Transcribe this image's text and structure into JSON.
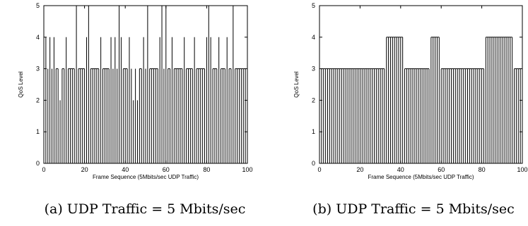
{
  "chart_data": [
    {
      "type": "bar",
      "xlabel": "Frame Sequence (5Mbits/sec UDP Traffic)",
      "ylabel": "QoS Level",
      "xlim": [
        0,
        100
      ],
      "ylim": [
        0,
        5
      ],
      "xticks": [
        "0",
        "20",
        "40",
        "60",
        "80",
        "100"
      ],
      "yticks": [
        "0",
        "1",
        "2",
        "3",
        "4",
        "5"
      ],
      "grid": false,
      "x": [
        1,
        2,
        3,
        4,
        5,
        6,
        7,
        8,
        9,
        10,
        11,
        12,
        13,
        14,
        15,
        16,
        17,
        18,
        19,
        20,
        21,
        22,
        23,
        24,
        25,
        26,
        27,
        28,
        29,
        30,
        31,
        32,
        33,
        34,
        35,
        36,
        37,
        38,
        39,
        40,
        41,
        42,
        43,
        44,
        45,
        46,
        47,
        48,
        49,
        50,
        51,
        52,
        53,
        54,
        55,
        56,
        57,
        58,
        59,
        60,
        61,
        62,
        63,
        64,
        65,
        66,
        67,
        68,
        69,
        70,
        71,
        72,
        73,
        74,
        75,
        76,
        77,
        78,
        79,
        80,
        81,
        82,
        83,
        84,
        85,
        86,
        87,
        88,
        89,
        90,
        91,
        92,
        93,
        94,
        95,
        96,
        97,
        98,
        99
      ],
      "values": [
        4,
        3,
        4,
        3,
        4,
        3,
        3,
        2,
        3,
        3,
        4,
        3,
        3,
        3,
        3,
        5,
        3,
        3,
        3,
        3,
        4,
        5,
        3,
        3,
        3,
        3,
        3,
        4,
        3,
        3,
        3,
        3,
        4,
        3,
        4,
        3,
        5,
        4,
        3,
        3,
        3,
        4,
        3,
        2,
        3,
        2,
        3,
        3,
        4,
        3,
        5,
        3,
        3,
        3,
        3,
        3,
        4,
        5,
        3,
        5,
        3,
        3,
        4,
        3,
        3,
        3,
        3,
        3,
        4,
        3,
        3,
        3,
        3,
        4,
        3,
        3,
        3,
        3,
        3,
        4,
        5,
        4,
        3,
        3,
        3,
        4,
        3,
        3,
        3,
        4,
        3,
        3,
        5,
        3,
        3,
        3,
        3,
        3,
        3
      ],
      "caption": "(a) UDP Traffic = 5 Mbits/sec"
    },
    {
      "type": "bar",
      "xlabel": "Frame Sequence (5Mbits/sec UDP Traffic)",
      "ylabel": "QoS Level",
      "xlim": [
        0,
        100
      ],
      "ylim": [
        0,
        5
      ],
      "xticks": [
        "0",
        "20",
        "40",
        "60",
        "80",
        "100"
      ],
      "yticks": [
        "0",
        "1",
        "2",
        "3",
        "4",
        "5"
      ],
      "grid": false,
      "x": [
        1,
        2,
        3,
        4,
        5,
        6,
        7,
        8,
        9,
        10,
        11,
        12,
        13,
        14,
        15,
        16,
        17,
        18,
        19,
        20,
        21,
        22,
        23,
        24,
        25,
        26,
        27,
        28,
        29,
        30,
        31,
        32,
        33,
        34,
        35,
        36,
        37,
        38,
        39,
        40,
        41,
        42,
        43,
        44,
        45,
        46,
        47,
        48,
        49,
        50,
        51,
        52,
        53,
        54,
        55,
        56,
        57,
        58,
        59,
        60,
        61,
        62,
        63,
        64,
        65,
        66,
        67,
        68,
        69,
        70,
        71,
        72,
        73,
        74,
        75,
        76,
        77,
        78,
        79,
        80,
        81,
        82,
        83,
        84,
        85,
        86,
        87,
        88,
        89,
        90,
        91,
        92,
        93,
        94,
        95,
        96,
        97,
        98,
        99
      ],
      "values": [
        3,
        3,
        3,
        3,
        3,
        3,
        3,
        3,
        3,
        3,
        3,
        3,
        3,
        3,
        3,
        3,
        3,
        3,
        3,
        3,
        3,
        3,
        3,
        3,
        3,
        3,
        3,
        3,
        3,
        3,
        3,
        3,
        4,
        4,
        4,
        4,
        4,
        4,
        4,
        4,
        4,
        3,
        3,
        3,
        3,
        3,
        3,
        3,
        3,
        3,
        3,
        3,
        3,
        3,
        4,
        4,
        4,
        4,
        4,
        3,
        3,
        3,
        3,
        3,
        3,
        3,
        3,
        3,
        3,
        3,
        3,
        3,
        3,
        3,
        3,
        3,
        3,
        3,
        3,
        3,
        3,
        4,
        4,
        4,
        4,
        4,
        4,
        4,
        4,
        4,
        4,
        4,
        4,
        4,
        4,
        3,
        3,
        3,
        3
      ],
      "caption": "(b) UDP Traffic = 5 Mbits/sec"
    }
  ]
}
